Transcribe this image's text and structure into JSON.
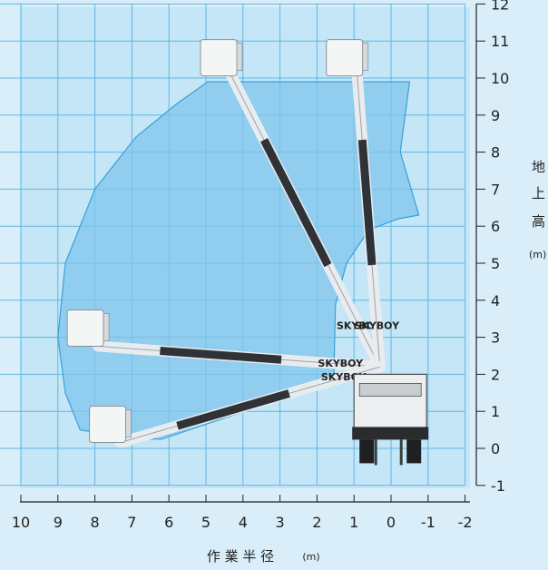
{
  "chart_data": {
    "type": "area",
    "title": "",
    "xlabel": "作 業 半 径",
    "xunit": "(m)",
    "ylabel_chars": [
      "地",
      "上",
      "高"
    ],
    "yunit": "(m)",
    "xlim": [
      10,
      -2
    ],
    "ylim": [
      -1,
      12
    ],
    "x_ticks": [
      "10",
      "9",
      "8",
      "7",
      "6",
      "5",
      "4",
      "3",
      "2",
      "1",
      "0",
      "-1",
      "-2"
    ],
    "y_ticks": [
      "-1",
      "0",
      "1",
      "2",
      "3",
      "4",
      "5",
      "6",
      "7",
      "8",
      "9",
      "10",
      "11",
      "12"
    ],
    "grid": true,
    "working_envelope": {
      "x": [
        4.95,
        4.2,
        3.0,
        2.0,
        0.9,
        -0.5,
        -0.25,
        -0.75,
        -0.2,
        0.6,
        1.2,
        1.5,
        1.55,
        6.2,
        7.0,
        8.4,
        8.8,
        9.0,
        8.8,
        8.0,
        6.9,
        5.8,
        4.95
      ],
      "y": [
        9.9,
        9.9,
        9.9,
        9.9,
        9.9,
        9.9,
        8.0,
        6.3,
        6.2,
        5.9,
        5.0,
        3.9,
        1.8,
        0.25,
        0.25,
        0.5,
        1.5,
        3.0,
        5.0,
        7.0,
        8.4,
        9.3,
        9.9
      ]
    },
    "envelope_color": "#7fc4ec",
    "boom_positions": [
      {
        "bucket_x": 5.0,
        "bucket_y": 10.5
      },
      {
        "bucket_x": 1.6,
        "bucket_y": 10.5
      },
      {
        "bucket_x": 8.6,
        "bucket_y": 3.2
      },
      {
        "bucket_x": 8.0,
        "bucket_y": 0.6
      }
    ],
    "boom_brand": "SKYBOY"
  }
}
